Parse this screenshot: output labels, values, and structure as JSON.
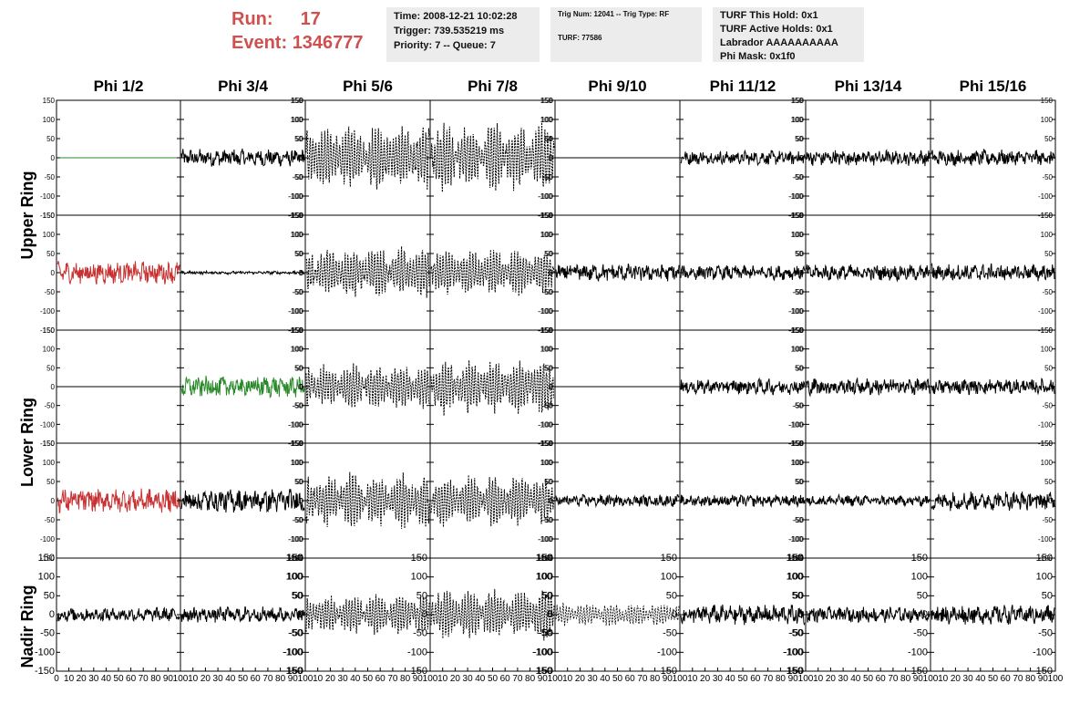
{
  "header": {
    "run_label": "Run:",
    "run_value": "17",
    "event_label": "Event:",
    "event_value": "1346777",
    "time_line": "Time: 2008-12-21 10:02:28",
    "trigger_line": "Trigger: 739.535219 ms",
    "priority_line": "Priority: 7 -- Queue: 7",
    "trig_num_line": "Trig Num: 12041 -- Trig Type: RF",
    "turf_line": "TURF: 77586",
    "turf_hold_line": "TURF This Hold: 0x1",
    "turf_active_line": "TURF Active Holds: 0x1",
    "labrador_line": "Labrador AAAAAAAAAA",
    "phi_mask_line": "Phi Mask: 0x1f0"
  },
  "columns": [
    "Phi 1/2",
    "Phi 3/4",
    "Phi 5/6",
    "Phi 7/8",
    "Phi 9/10",
    "Phi 11/12",
    "Phi 13/14",
    "Phi 15/16"
  ],
  "ring_labels": [
    "Upper Ring",
    "Lower Ring",
    "Nadir Ring"
  ],
  "colors": {
    "title_red": "#d0504f",
    "trace_black": "#000000",
    "trace_red": "#c83232",
    "trace_green": "#2a8a2a",
    "info_bg": "#ececec"
  },
  "chart_data": {
    "type": "line",
    "ylim": [
      -150,
      150
    ],
    "xlim": [
      0,
      100
    ],
    "y_ticks": [
      150,
      100,
      50,
      0,
      -50,
      -100,
      -150
    ],
    "x_ticks": [
      0,
      10,
      20,
      30,
      40,
      50,
      60,
      70,
      80,
      90,
      100
    ],
    "panels": [
      [
        {
          "style": "flat",
          "color": "green",
          "amp": 0
        },
        {
          "style": "noise",
          "color": "black",
          "amp": 22
        },
        {
          "style": "burst",
          "color": "black",
          "amp": 70
        },
        {
          "style": "burst",
          "color": "black",
          "amp": 75
        },
        {
          "style": "flat",
          "color": "black",
          "amp": 0
        },
        {
          "style": "noise",
          "color": "black",
          "amp": 18
        },
        {
          "style": "noise",
          "color": "black",
          "amp": 20
        },
        {
          "style": "noise",
          "color": "black",
          "amp": 20
        }
      ],
      [
        {
          "style": "noise",
          "color": "red",
          "amp": 28
        },
        {
          "style": "noise",
          "color": "black",
          "amp": 4
        },
        {
          "style": "burst",
          "color": "black",
          "amp": 55
        },
        {
          "style": "burst",
          "color": "black",
          "amp": 50
        },
        {
          "style": "noise",
          "color": "black",
          "amp": 22
        },
        {
          "style": "noise",
          "color": "black",
          "amp": 18
        },
        {
          "style": "noise",
          "color": "black",
          "amp": 20
        },
        {
          "style": "noise",
          "color": "black",
          "amp": 22
        }
      ],
      [
        {
          "style": "flat",
          "color": "black",
          "amp": 0
        },
        {
          "style": "noise",
          "color": "green",
          "amp": 28
        },
        {
          "style": "burst",
          "color": "black",
          "amp": 50
        },
        {
          "style": "burst",
          "color": "black",
          "amp": 60
        },
        {
          "style": "flat",
          "color": "black",
          "amp": 0
        },
        {
          "style": "noise",
          "color": "black",
          "amp": 20
        },
        {
          "style": "noise",
          "color": "black",
          "amp": 22
        },
        {
          "style": "noise",
          "color": "black",
          "amp": 20
        }
      ],
      [
        {
          "style": "noise",
          "color": "red",
          "amp": 30
        },
        {
          "style": "noise",
          "color": "black",
          "amp": 30
        },
        {
          "style": "burst",
          "color": "black",
          "amp": 60
        },
        {
          "style": "burst",
          "color": "black",
          "amp": 55
        },
        {
          "style": "noise",
          "color": "black",
          "amp": 15
        },
        {
          "style": "noise",
          "color": "black",
          "amp": 15
        },
        {
          "style": "noise",
          "color": "black",
          "amp": 14
        },
        {
          "style": "noise",
          "color": "black",
          "amp": 25
        }
      ],
      [
        {
          "style": "noise",
          "color": "black",
          "amp": 18
        },
        {
          "style": "noise",
          "color": "black",
          "amp": 20
        },
        {
          "style": "burst",
          "color": "black",
          "amp": 45
        },
        {
          "style": "burst",
          "color": "black",
          "amp": 55
        },
        {
          "style": "burstthin",
          "color": "black",
          "amp": 25
        },
        {
          "style": "noise",
          "color": "black",
          "amp": 25
        },
        {
          "style": "noise",
          "color": "black",
          "amp": 20
        },
        {
          "style": "noise",
          "color": "black",
          "amp": 25
        }
      ]
    ]
  }
}
